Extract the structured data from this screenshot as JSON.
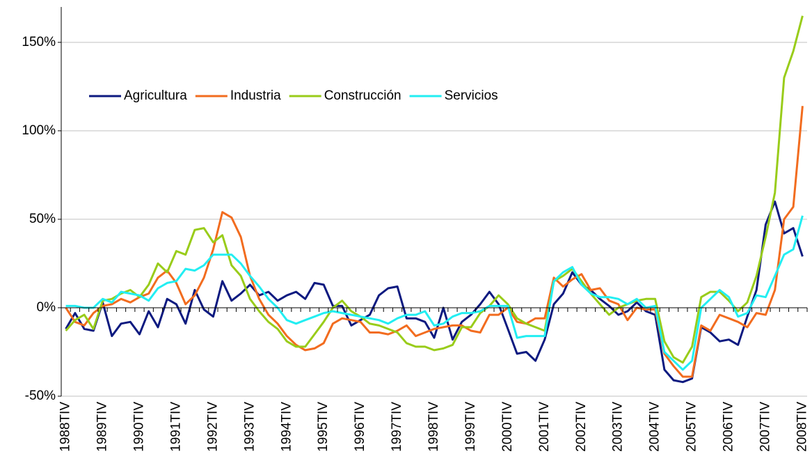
{
  "chart_data": {
    "type": "line",
    "categories": [
      "1988TIV",
      null,
      null,
      null,
      "1989TIV",
      null,
      null,
      null,
      "1990TIV",
      null,
      null,
      null,
      "1991TIV",
      null,
      null,
      null,
      "1992TIV",
      null,
      null,
      null,
      "1993TIV",
      null,
      null,
      null,
      "1994TIV",
      null,
      null,
      null,
      "1995TIV",
      null,
      null,
      null,
      "1996TIV",
      null,
      null,
      null,
      "1997TIV",
      null,
      null,
      null,
      "1998TIV",
      null,
      null,
      null,
      "1999TIV",
      null,
      null,
      null,
      "2000TIV",
      null,
      null,
      null,
      "2001TIV",
      null,
      null,
      null,
      "2002TIV",
      null,
      null,
      null,
      "2003TIV",
      null,
      null,
      null,
      "2004TIV",
      null,
      null,
      null,
      "2005TIV",
      null,
      null,
      null,
      "2006TIV",
      null,
      null,
      null,
      "2007TIV",
      null,
      null,
      null,
      "2008TIV"
    ],
    "series": [
      {
        "name": "Agricultura",
        "color": "#0d1a80",
        "values": [
          -12,
          -3,
          -12,
          -13,
          3,
          -16,
          -9,
          -8,
          -15,
          -2,
          -11,
          5,
          2,
          -9,
          10,
          -1,
          -5,
          15,
          4,
          8,
          13,
          7,
          9,
          4,
          7,
          9,
          5,
          14,
          13,
          1,
          1,
          -10,
          -7,
          -4,
          7,
          11,
          12,
          -6,
          -6,
          -8,
          -17,
          0,
          -18,
          -8,
          -4,
          2,
          9,
          2,
          -12,
          -26,
          -25,
          -30,
          -18,
          2,
          8,
          20,
          13,
          10,
          5,
          1,
          -4,
          -2,
          3,
          -2,
          -4,
          -35,
          -41,
          -42,
          -40,
          -11,
          -14,
          -19,
          -18,
          -21,
          -5,
          10,
          47,
          60,
          42,
          45,
          29
        ]
      },
      {
        "name": "Industria",
        "color": "#f26c1f",
        "values": [
          0,
          -8,
          -10,
          -3,
          1,
          2,
          5,
          3,
          6,
          8,
          17,
          21,
          14,
          2,
          7,
          17,
          33,
          54,
          51,
          40,
          18,
          5,
          -4,
          -9,
          -16,
          -21,
          -24,
          -23,
          -20,
          -9,
          -6,
          -7,
          -8,
          -14,
          -14,
          -15,
          -13,
          -10,
          -16,
          -14,
          -12,
          -11,
          -10,
          -10,
          -13,
          -14,
          -4,
          -4,
          0,
          -8,
          -9,
          -6,
          -6,
          17,
          12,
          16,
          19,
          10,
          11,
          4,
          2,
          -7,
          0,
          -1,
          -1,
          -26,
          -33,
          -39,
          -39,
          -10,
          -13,
          -4,
          -6,
          -8,
          -11,
          -3,
          -4,
          10,
          50,
          57,
          114
        ]
      },
      {
        "name": "Construcción",
        "color": "#99cc1a",
        "values": [
          -13,
          -7,
          -4,
          -12,
          4,
          5,
          8,
          10,
          6,
          13,
          25,
          20,
          32,
          30,
          44,
          45,
          37,
          41,
          24,
          18,
          5,
          -2,
          -8,
          -12,
          -19,
          -22,
          -22,
          -15,
          -8,
          0,
          4,
          -2,
          -5,
          -9,
          -10,
          -12,
          -14,
          -20,
          -22,
          -22,
          -24,
          -23,
          -21,
          -11,
          -11,
          -3,
          1,
          7,
          2,
          -6,
          -9,
          -11,
          -13,
          15,
          18,
          22,
          15,
          8,
          2,
          -4,
          0,
          2,
          4,
          5,
          5,
          -19,
          -28,
          -31,
          -22,
          6,
          9,
          9,
          4,
          -2,
          3,
          18,
          40,
          65,
          130,
          145,
          165
        ]
      },
      {
        "name": "Servicios",
        "color": "#22eef2",
        "values": [
          1,
          1,
          0,
          0,
          5,
          3,
          9,
          8,
          7,
          4,
          11,
          14,
          15,
          22,
          21,
          24,
          30,
          30,
          30,
          25,
          18,
          12,
          5,
          0,
          -7,
          -9,
          -7,
          -5,
          -3,
          -2,
          -3,
          -4,
          -5,
          -6,
          -7,
          -9,
          -6,
          -4,
          -4,
          -2,
          -10,
          -9,
          -5,
          -3,
          -3,
          -2,
          1,
          1,
          1,
          -17,
          -16,
          -16,
          -16,
          15,
          20,
          23,
          13,
          8,
          6,
          6,
          5,
          2,
          5,
          0,
          1,
          -25,
          -30,
          -35,
          -30,
          0,
          5,
          10,
          6,
          -5,
          -3,
          7,
          6,
          18,
          30,
          33,
          52
        ]
      }
    ],
    "ylim": [
      -50,
      170
    ],
    "yticks": [
      {
        "value": -50,
        "label": "-50%"
      },
      {
        "value": 0,
        "label": "0%"
      },
      {
        "value": 50,
        "label": "50%"
      },
      {
        "value": 100,
        "label": "100%"
      },
      {
        "value": 150,
        "label": "150%"
      }
    ],
    "grid": true
  }
}
